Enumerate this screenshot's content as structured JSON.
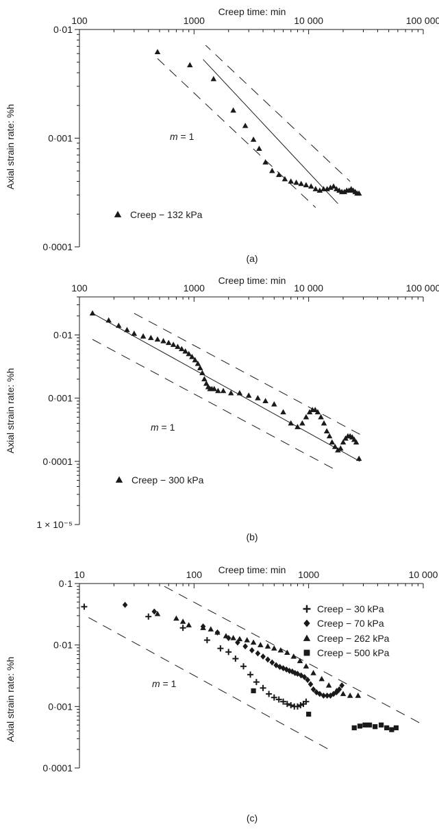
{
  "chart_data": [
    {
      "panel_label": "(a)",
      "type": "scatter",
      "title": "",
      "xlabel": "Creep time: min",
      "ylabel": "Axial strain rate: %h",
      "x_scale": "log",
      "y_scale": "log",
      "xlim": [
        100,
        100000
      ],
      "ylim": [
        0.0001,
        0.01
      ],
      "x_ticks": [
        100,
        1000,
        10000,
        100000
      ],
      "x_tick_labels": [
        "100",
        "1000",
        "10 000",
        "100 000"
      ],
      "y_ticks": [
        0.0001,
        0.001,
        0.01
      ],
      "y_tick_labels": [
        "0·0001",
        "0·001",
        "0·01"
      ],
      "grid": false,
      "legend_position": "bottom-left",
      "annotation": {
        "text_italic": "m",
        "text_rest": " = 1",
        "x": 1100,
        "y": 0.0011
      },
      "reference_lines": [
        {
          "style": "solid",
          "slope": -1,
          "x": [
            1200,
            18000
          ],
          "y": [
            0.0053,
            0.00025
          ]
        },
        {
          "style": "dashed",
          "slope": -1,
          "x": [
            950,
            23000
          ],
          "y": [
            0.0095,
            0.0004
          ]
        },
        {
          "style": "dashed",
          "slope": -1,
          "x": [
            480,
            11500
          ],
          "y": [
            0.0054,
            0.00023
          ]
        }
      ],
      "series": [
        {
          "name": "Creep − 132 kPa",
          "marker": "triangle",
          "x": [
            480,
            920,
            1480,
            2200,
            2800,
            3300,
            3700,
            4200,
            4800,
            5500,
            6200,
            7000,
            7800,
            8600,
            9500,
            10500,
            11500,
            12500,
            13500,
            14500,
            15500,
            16500,
            17500,
            18500,
            19500,
            20500,
            21500,
            22500,
            23500,
            24500,
            25500,
            26500,
            27500
          ],
          "y": [
            0.0062,
            0.0047,
            0.0035,
            0.0018,
            0.0013,
            0.00097,
            0.0008,
            0.0006,
            0.0005,
            0.00046,
            0.00042,
            0.0004,
            0.00039,
            0.00038,
            0.00037,
            0.00036,
            0.00034,
            0.00033,
            0.00034,
            0.00034,
            0.00035,
            0.00036,
            0.00034,
            0.00033,
            0.00032,
            0.00032,
            0.00033,
            0.00033,
            0.00034,
            0.00033,
            0.00032,
            0.00031,
            0.00031
          ]
        }
      ]
    },
    {
      "panel_label": "(b)",
      "type": "scatter",
      "title": "",
      "xlabel": "Creep time: min",
      "ylabel": "Axial strain rate: %h",
      "x_scale": "log",
      "y_scale": "log",
      "xlim": [
        100,
        100000
      ],
      "ylim": [
        1e-05,
        0.04
      ],
      "x_ticks": [
        100,
        1000,
        10000,
        100000
      ],
      "x_tick_labels": [
        "100",
        "1000",
        "10 000",
        "100 000"
      ],
      "y_ticks": [
        1e-05,
        0.0001,
        0.001,
        0.01
      ],
      "y_tick_labels": [
        "1 × 10⁻⁵",
        "0·0001",
        "0·001",
        "0·01"
      ],
      "grid": false,
      "legend_position": "bottom-left",
      "annotation": {
        "text_italic": "m",
        "text_rest": " = 1",
        "x": 300,
        "y": 0.0007
      },
      "reference_lines": [
        {
          "style": "solid",
          "slope": -1,
          "x": [
            130,
            28000
          ],
          "y": [
            0.022,
            0.0001
          ]
        },
        {
          "style": "dashed",
          "slope": -1,
          "x": [
            300,
            30000
          ],
          "y": [
            0.022,
            0.00025
          ]
        },
        {
          "style": "dashed",
          "slope": -1,
          "x": [
            130,
            18000
          ],
          "y": [
            0.0085,
            7e-05
          ]
        }
      ],
      "series": [
        {
          "name": "Creep − 300 kPa",
          "marker": "triangle",
          "x": [
            130,
            180,
            220,
            260,
            300,
            360,
            420,
            480,
            540,
            600,
            660,
            720,
            780,
            840,
            900,
            960,
            1020,
            1080,
            1130,
            1180,
            1230,
            1280,
            1330,
            1380,
            1430,
            1500,
            1620,
            1800,
            2100,
            2500,
            3000,
            3600,
            4200,
            5000,
            6000,
            7000,
            8000,
            8800,
            9500,
            10200,
            10800,
            11400,
            12000,
            12800,
            13600,
            14400,
            15200,
            16000,
            17000,
            18000,
            19000,
            20000,
            21000,
            22000,
            23000,
            24000,
            25000,
            26000,
            27500
          ],
          "y": [
            0.022,
            0.017,
            0.014,
            0.012,
            0.0105,
            0.0095,
            0.009,
            0.0085,
            0.008,
            0.0075,
            0.007,
            0.0065,
            0.006,
            0.0055,
            0.005,
            0.0045,
            0.004,
            0.0035,
            0.003,
            0.0025,
            0.002,
            0.0017,
            0.0015,
            0.0014,
            0.0014,
            0.0014,
            0.0013,
            0.0013,
            0.0012,
            0.0012,
            0.0011,
            0.001,
            0.0009,
            0.0008,
            0.0006,
            0.0004,
            0.00035,
            0.0004,
            0.0005,
            0.0006,
            0.00065,
            0.00065,
            0.0006,
            0.0005,
            0.0004,
            0.0003,
            0.00025,
            0.0002,
            0.00017,
            0.00015,
            0.00016,
            0.0002,
            0.00023,
            0.00025,
            0.00025,
            0.00024,
            0.00022,
            0.0002,
            0.00011
          ]
        }
      ]
    },
    {
      "panel_label": "(c)",
      "type": "scatter",
      "title": "",
      "xlabel": "Creep time: min",
      "ylabel": "Axial strain rate: %h",
      "x_scale": "log",
      "y_scale": "log",
      "xlim": [
        10,
        10000
      ],
      "ylim": [
        0.0001,
        0.1
      ],
      "x_ticks": [
        10,
        100,
        1000,
        10000
      ],
      "x_tick_labels": [
        "10",
        "100",
        "1000",
        "10 000"
      ],
      "y_ticks": [
        0.0001,
        0.001,
        0.01,
        0.1
      ],
      "y_tick_labels": [
        "0·0001",
        "0·001",
        "0·01",
        "0·1"
      ],
      "grid": false,
      "legend_position": "top-right",
      "annotation": {
        "text_italic": "m",
        "text_rest": " = 1",
        "x": 28,
        "y": 0.0045
      },
      "reference_lines": [
        {
          "style": "dashed",
          "slope": -1,
          "x": [
            55,
            12000
          ],
          "y": [
            0.09,
            0.00042
          ]
        },
        {
          "style": "dashed",
          "slope": -1,
          "x": [
            12,
            1500
          ],
          "y": [
            0.028,
            0.0002
          ]
        }
      ],
      "series": [
        {
          "name": "Creep − 30 kPa",
          "marker": "plus",
          "x": [
            11,
            40,
            80,
            130,
            170,
            200,
            230,
            270,
            310,
            350,
            400,
            450,
            500,
            550,
            600,
            650,
            700,
            750,
            800,
            850,
            900,
            950
          ],
          "y": [
            0.042,
            0.029,
            0.019,
            0.012,
            0.0088,
            0.0077,
            0.006,
            0.0045,
            0.0033,
            0.0025,
            0.002,
            0.0016,
            0.0014,
            0.0013,
            0.0012,
            0.0011,
            0.00105,
            0.001,
            0.001,
            0.00105,
            0.0011,
            0.0012
          ]
        },
        {
          "name": "Creep − 70 kPa",
          "marker": "diamond",
          "x": [
            25,
            45,
            120,
            160,
            200,
            240,
            280,
            320,
            360,
            400,
            440,
            480,
            520,
            560,
            600,
            640,
            680,
            720,
            760,
            800,
            860,
            920,
            980,
            1040,
            1100,
            1170,
            1250,
            1350,
            1450,
            1550,
            1650,
            1750,
            1850,
            1950
          ],
          "y": [
            0.045,
            0.035,
            0.02,
            0.016,
            0.013,
            0.011,
            0.0095,
            0.0082,
            0.0073,
            0.0065,
            0.0058,
            0.0052,
            0.0047,
            0.0044,
            0.0042,
            0.004,
            0.0038,
            0.0037,
            0.0035,
            0.0034,
            0.0032,
            0.003,
            0.0027,
            0.0023,
            0.0019,
            0.0017,
            0.0016,
            0.0015,
            0.0015,
            0.0015,
            0.0016,
            0.0017,
            0.0019,
            0.0022
          ]
        },
        {
          "name": "Creep − 262 kPa",
          "marker": "triangle",
          "x": [
            48,
            70,
            80,
            90,
            120,
            140,
            160,
            190,
            220,
            250,
            290,
            330,
            380,
            440,
            500,
            570,
            650,
            740,
            840,
            950,
            1100,
            1300,
            1500,
            1750,
            2000,
            2300,
            2700
          ],
          "y": [
            0.032,
            0.027,
            0.024,
            0.021,
            0.019,
            0.018,
            0.016,
            0.014,
            0.013,
            0.0125,
            0.012,
            0.011,
            0.01,
            0.0095,
            0.0088,
            0.0082,
            0.0075,
            0.0065,
            0.0055,
            0.0045,
            0.0035,
            0.0028,
            0.0022,
            0.0018,
            0.0016,
            0.0015,
            0.0015
          ]
        },
        {
          "name": "Creep − 500 kPa",
          "marker": "square",
          "x": [
            330,
            1000,
            2500,
            2800,
            3100,
            3400,
            3800,
            4300,
            4800,
            5300,
            5800
          ],
          "y": [
            0.0018,
            0.00075,
            0.00045,
            0.00048,
            0.0005,
            0.0005,
            0.00047,
            0.0005,
            0.00045,
            0.00042,
            0.00045
          ]
        }
      ]
    }
  ]
}
